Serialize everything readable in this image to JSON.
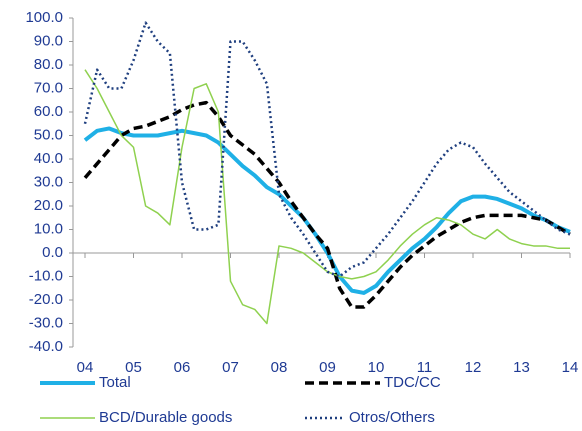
{
  "chart_data": {
    "type": "line",
    "x": [
      2004,
      2004.25,
      2004.5,
      2004.75,
      2005,
      2005.25,
      2005.5,
      2005.75,
      2006,
      2006.25,
      2006.5,
      2006.75,
      2007,
      2007.25,
      2007.5,
      2007.75,
      2008,
      2008.25,
      2008.5,
      2008.75,
      2009,
      2009.25,
      2009.5,
      2009.75,
      2010,
      2010.25,
      2010.5,
      2010.75,
      2011,
      2011.25,
      2011.5,
      2011.75,
      2012,
      2012.25,
      2012.5,
      2012.75,
      2013,
      2013.25,
      2013.5,
      2013.75,
      2014
    ],
    "series": [
      {
        "name": "Total",
        "color": "#1fb0e6",
        "width": 4,
        "dash": "solid",
        "values": [
          48,
          52,
          53,
          51,
          50,
          50,
          50,
          51,
          52,
          51,
          50,
          47,
          42,
          37,
          33,
          28,
          25,
          20,
          15,
          8,
          0,
          -10,
          -16,
          -17,
          -14,
          -8,
          -3,
          2,
          6,
          11,
          17,
          22,
          24,
          24,
          23,
          21,
          19,
          16,
          14,
          11,
          9
        ]
      },
      {
        "name": "TDC/CC",
        "color": "#000000",
        "width": 3.5,
        "dash": "dashed",
        "values": [
          32,
          38,
          44,
          50,
          53,
          54,
          56,
          58,
          61,
          63,
          64,
          58,
          50,
          46,
          42,
          36,
          30,
          22,
          15,
          8,
          2,
          -15,
          -23,
          -23,
          -18,
          -12,
          -6,
          -1,
          3,
          7,
          10,
          13,
          15,
          16,
          16,
          16,
          16,
          15,
          14,
          11,
          8
        ]
      },
      {
        "name": "BCD/Durable goods",
        "color": "#8fd14f",
        "width": 1.5,
        "dash": "solid",
        "values": [
          78,
          70,
          60,
          50,
          45,
          20,
          17,
          12,
          45,
          70,
          72,
          60,
          -12,
          -22,
          -24,
          -30,
          3,
          2,
          0,
          -4,
          -8,
          -10,
          -11,
          -10,
          -8,
          -3,
          3,
          8,
          12,
          15,
          14,
          12,
          8,
          6,
          10,
          6,
          4,
          3,
          3,
          2,
          2
        ]
      },
      {
        "name": "Otros/Others",
        "color": "#1f3f7f",
        "width": 2.5,
        "dash": "dotted",
        "values": [
          55,
          78,
          70,
          70,
          82,
          98,
          90,
          85,
          30,
          10,
          10,
          12,
          90,
          90,
          82,
          72,
          25,
          15,
          8,
          0,
          -8,
          -10,
          -6,
          -4,
          2,
          8,
          15,
          22,
          30,
          38,
          44,
          47,
          45,
          38,
          32,
          26,
          22,
          18,
          14,
          10,
          8
        ]
      }
    ],
    "xlim": [
      2004,
      2014
    ],
    "xticks": [
      {
        "value": 2004,
        "label": "04"
      },
      {
        "value": 2005,
        "label": "05"
      },
      {
        "value": 2006,
        "label": "06"
      },
      {
        "value": 2007,
        "label": "07"
      },
      {
        "value": 2008,
        "label": "08"
      },
      {
        "value": 2009,
        "label": "09"
      },
      {
        "value": 2010,
        "label": "10"
      },
      {
        "value": 2011,
        "label": "11"
      },
      {
        "value": 2012,
        "label": "12"
      },
      {
        "value": 2013,
        "label": "13"
      },
      {
        "value": 2014,
        "label": "14"
      }
    ],
    "ylim": [
      -40,
      100
    ],
    "yticks": [
      {
        "value": 100,
        "label": "100.0"
      },
      {
        "value": 90,
        "label": "90.0"
      },
      {
        "value": 80,
        "label": "80.0"
      },
      {
        "value": 70,
        "label": "70.0"
      },
      {
        "value": 60,
        "label": "60.0"
      },
      {
        "value": 50,
        "label": "50.0"
      },
      {
        "value": 40,
        "label": "40.0"
      },
      {
        "value": 30,
        "label": "30.0"
      },
      {
        "value": 20,
        "label": "20.0"
      },
      {
        "value": 10,
        "label": "10.0"
      },
      {
        "value": 0,
        "label": "0.0"
      },
      {
        "value": -10,
        "label": "-10.0"
      },
      {
        "value": -20,
        "label": "-20.0"
      },
      {
        "value": -30,
        "label": "-30.0"
      },
      {
        "value": -40,
        "label": "-40.0"
      }
    ],
    "legend": "bottom"
  }
}
